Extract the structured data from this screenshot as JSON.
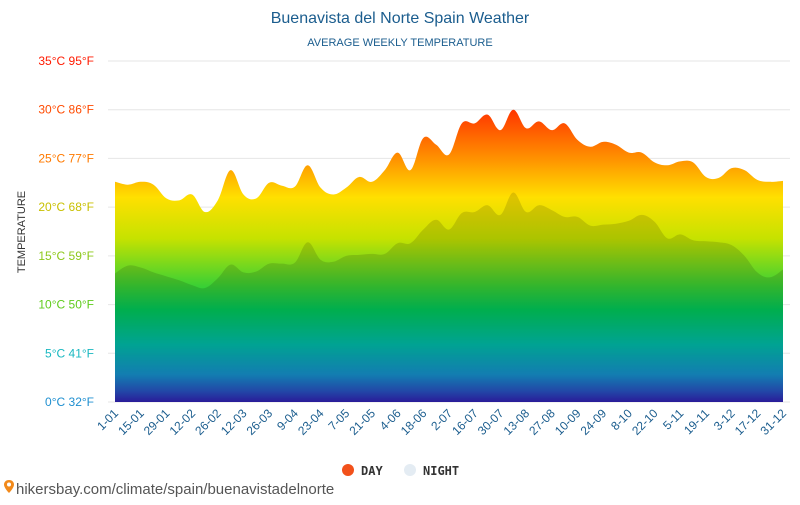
{
  "chart_data": {
    "type": "area",
    "title": "Buenavista del Norte Spain Weather",
    "subtitle": "AVERAGE WEEKLY TEMPERATURE",
    "y_label": "TEMPERATURE",
    "source": "hikersbay.com/climate/spain/buenavistadelnorte",
    "categories": [
      "1-01",
      null,
      "15-01",
      null,
      "29-01",
      null,
      "12-02",
      null,
      "26-02",
      null,
      "12-03",
      null,
      "26-03",
      null,
      "9-04",
      null,
      "23-04",
      null,
      "7-05",
      null,
      "21-05",
      null,
      "4-06",
      null,
      "18-06",
      null,
      "2-07",
      null,
      "16-07",
      null,
      "30-07",
      null,
      "13-08",
      null,
      "27-08",
      null,
      "10-09",
      null,
      "24-09",
      null,
      "8-10",
      null,
      "22-10",
      null,
      "5-11",
      null,
      "19-11",
      null,
      "3-12",
      null,
      "17-12",
      null,
      "31-12"
    ],
    "series": [
      {
        "name": "DAY",
        "color": "#f2511b",
        "values": [
          22.6,
          22.3,
          22.6,
          22.3,
          20.9,
          20.7,
          21.3,
          19.5,
          20.7,
          23.8,
          21.3,
          20.9,
          22.5,
          22.2,
          22.1,
          24.3,
          22.0,
          21.3,
          22.0,
          23.1,
          22.6,
          23.8,
          25.6,
          23.8,
          27.1,
          26.4,
          25.4,
          28.6,
          28.6,
          29.5,
          27.9,
          30.0,
          28.1,
          28.8,
          27.9,
          28.6,
          26.9,
          26.2,
          26.7,
          26.4,
          25.6,
          25.6,
          24.6,
          24.3,
          24.7,
          24.6,
          23.1,
          23.0,
          24.0,
          23.8,
          22.8,
          22.6,
          22.7
        ]
      },
      {
        "name": "NIGHT",
        "color": "#e4ecf3",
        "values": [
          13.2,
          14.0,
          13.8,
          13.3,
          12.9,
          12.5,
          12.0,
          11.7,
          12.7,
          14.1,
          13.3,
          13.4,
          14.2,
          14.2,
          14.3,
          16.4,
          14.6,
          14.4,
          15.0,
          15.1,
          15.2,
          15.2,
          16.3,
          16.3,
          17.7,
          18.7,
          17.7,
          19.4,
          19.5,
          20.2,
          19.2,
          21.5,
          19.5,
          20.2,
          19.7,
          19.0,
          19.0,
          18.1,
          18.2,
          18.3,
          18.6,
          19.2,
          18.5,
          16.8,
          17.2,
          16.6,
          16.5,
          16.4,
          16.1,
          15.0,
          13.3,
          12.8,
          13.6
        ]
      }
    ],
    "ylim": [
      0,
      35
    ],
    "yticks": [
      {
        "value": 0,
        "label": "0°C 32°F"
      },
      {
        "value": 5,
        "label": "5°C 41°F"
      },
      {
        "value": 10,
        "label": "10°C 50°F"
      },
      {
        "value": 15,
        "label": "15°C 59°F"
      },
      {
        "value": 20,
        "label": "20°C 68°F"
      },
      {
        "value": 25,
        "label": "25°C 77°F"
      },
      {
        "value": 30,
        "label": "30°C 86°F"
      },
      {
        "value": 35,
        "label": "35°C 95°F"
      }
    ],
    "ytick_colors": [
      "#1f8fd0",
      "#19b8c0",
      "#5fcc1c",
      "#8cc81a",
      "#c8c000",
      "#ff7a00",
      "#ff4a00",
      "#ff1a00"
    ],
    "grid": true
  }
}
